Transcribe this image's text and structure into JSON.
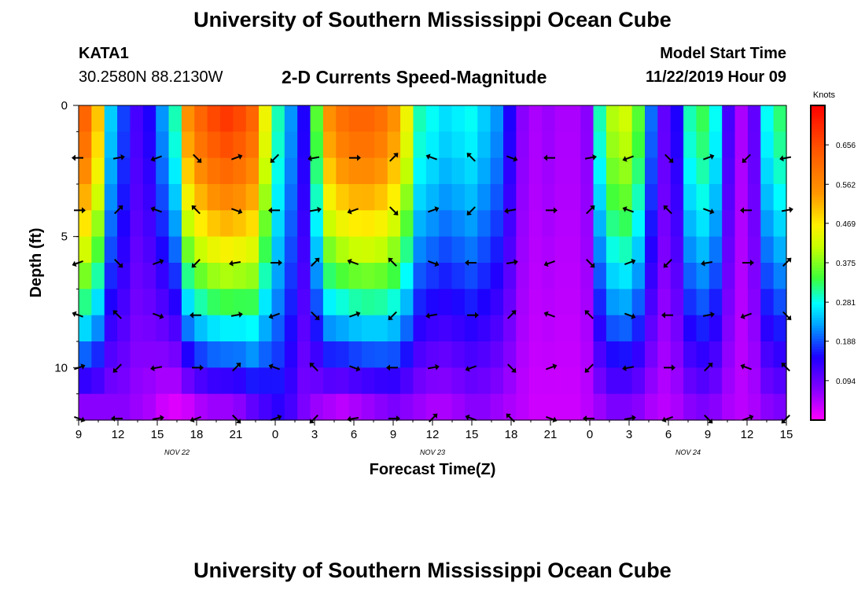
{
  "header": {
    "title": "University of Southern Mississippi Ocean Cube",
    "station_id": "KATA1",
    "station_coords": "30.2580N 88.2130W",
    "model_start_label": "Model Start Time",
    "model_start_value": "11/22/2019 Hour 09"
  },
  "footer": {
    "title": "University of Southern Mississippi Ocean Cube"
  },
  "chart_data": {
    "type": "heatmap",
    "title": "2-D Currents Speed-Magnitude",
    "xlabel": "Forecast Time(Z)",
    "ylabel": "Depth (ft)",
    "colorbar_label": "Knots",
    "colorbar_ticks": [
      "0.656",
      "0.562",
      "0.469",
      "0.375",
      "0.281",
      "0.188",
      "0.094"
    ],
    "colorbar_range": [
      0.0,
      0.75
    ],
    "y_ticks": [
      "0",
      "5",
      "10"
    ],
    "ylim": [
      0,
      12
    ],
    "x_range_hours": [
      0,
      54
    ],
    "x_ticks": [
      "9",
      "12",
      "15",
      "18",
      "21",
      "0",
      "3",
      "6",
      "9",
      "12",
      "15",
      "18",
      "21",
      "0",
      "3",
      "6",
      "9",
      "12",
      "15"
    ],
    "date_labels": [
      {
        "text": "NOV  22",
        "hour": 7.5
      },
      {
        "text": "NOV  23",
        "hour": 27
      },
      {
        "text": "NOV  24",
        "hour": 46.5
      }
    ],
    "depths_ft": [
      0.5,
      1.5,
      2.5,
      3.5,
      4.5,
      5.5,
      6.5,
      7.5,
      8.5,
      9.5,
      10.5,
      11.5
    ],
    "speed_profile": {
      "description_hours_step": 1,
      "surface_knots": [
        0.62,
        0.5,
        0.25,
        0.18,
        0.12,
        0.15,
        0.22,
        0.3,
        0.55,
        0.62,
        0.66,
        0.68,
        0.66,
        0.62,
        0.45,
        0.3,
        0.22,
        0.15,
        0.35,
        0.55,
        0.6,
        0.62,
        0.62,
        0.6,
        0.55,
        0.45,
        0.3,
        0.28,
        0.26,
        0.27,
        0.28,
        0.25,
        0.22,
        0.15,
        0.07,
        0.05,
        0.06,
        0.05,
        0.05,
        0.07,
        0.3,
        0.4,
        0.42,
        0.35,
        0.2,
        0.1,
        0.15,
        0.3,
        0.33,
        0.28,
        0.12,
        0.05,
        0.1,
        0.28,
        0.32
      ],
      "bottom_knots": [
        0.07,
        0.07,
        0.07,
        0.07,
        0.06,
        0.05,
        0.03,
        0.02,
        0.03,
        0.05,
        0.06,
        0.06,
        0.07,
        0.1,
        0.12,
        0.14,
        0.12,
        0.08,
        0.06,
        0.05,
        0.04,
        0.05,
        0.06,
        0.07,
        0.08,
        0.07,
        0.06,
        0.05,
        0.05,
        0.06,
        0.07,
        0.07,
        0.06,
        0.05,
        0.04,
        0.03,
        0.03,
        0.03,
        0.03,
        0.04,
        0.06,
        0.08,
        0.08,
        0.07,
        0.05,
        0.04,
        0.05,
        0.07,
        0.08,
        0.07,
        0.05,
        0.04,
        0.05,
        0.07,
        0.08
      ]
    },
    "arrow_depths_ft": [
      2,
      4,
      6,
      8,
      10,
      12
    ],
    "arrow_hours": [
      0,
      3,
      6,
      9,
      12,
      15,
      18,
      21,
      24,
      27,
      30,
      33,
      36,
      39,
      42,
      45,
      48,
      51,
      54
    ]
  }
}
